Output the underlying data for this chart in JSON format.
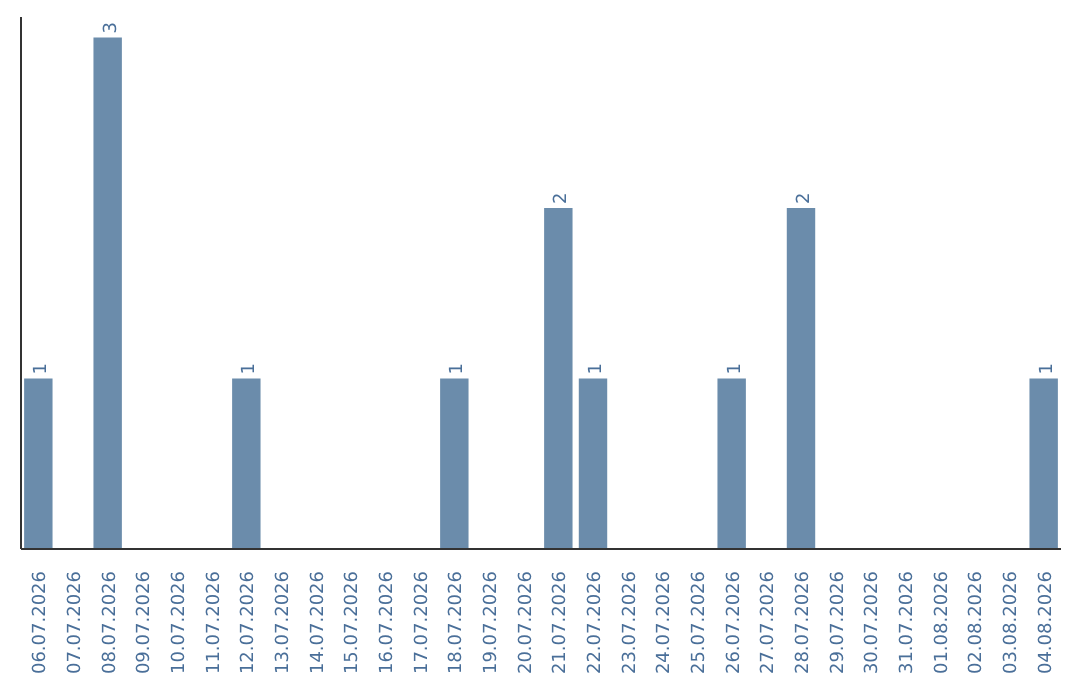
{
  "chart_data": {
    "type": "bar",
    "categories": [
      "06.07.2026",
      "07.07.2026",
      "08.07.2026",
      "09.07.2026",
      "10.07.2026",
      "11.07.2026",
      "12.07.2026",
      "13.07.2026",
      "14.07.2026",
      "15.07.2026",
      "16.07.2026",
      "17.07.2026",
      "18.07.2026",
      "19.07.2026",
      "20.07.2026",
      "21.07.2026",
      "22.07.2026",
      "23.07.2026",
      "24.07.2026",
      "25.07.2026",
      "26.07.2026",
      "27.07.2026",
      "28.07.2026",
      "29.07.2026",
      "30.07.2026",
      "31.07.2026",
      "01.08.2026",
      "02.08.2026",
      "03.08.2026",
      "04.08.2026"
    ],
    "values": [
      1,
      0,
      3,
      0,
      0,
      0,
      1,
      0,
      0,
      0,
      0,
      0,
      1,
      0,
      0,
      2,
      1,
      0,
      0,
      0,
      1,
      0,
      2,
      0,
      0,
      0,
      0,
      0,
      0,
      1
    ],
    "value_labels": [
      "1",
      null,
      "3",
      null,
      null,
      null,
      "1",
      null,
      null,
      null,
      null,
      null,
      "1",
      null,
      null,
      "2",
      "1",
      null,
      null,
      null,
      "1",
      null,
      "2",
      null,
      null,
      null,
      null,
      null,
      null,
      "1"
    ],
    "color": "#6b8cab"
  }
}
